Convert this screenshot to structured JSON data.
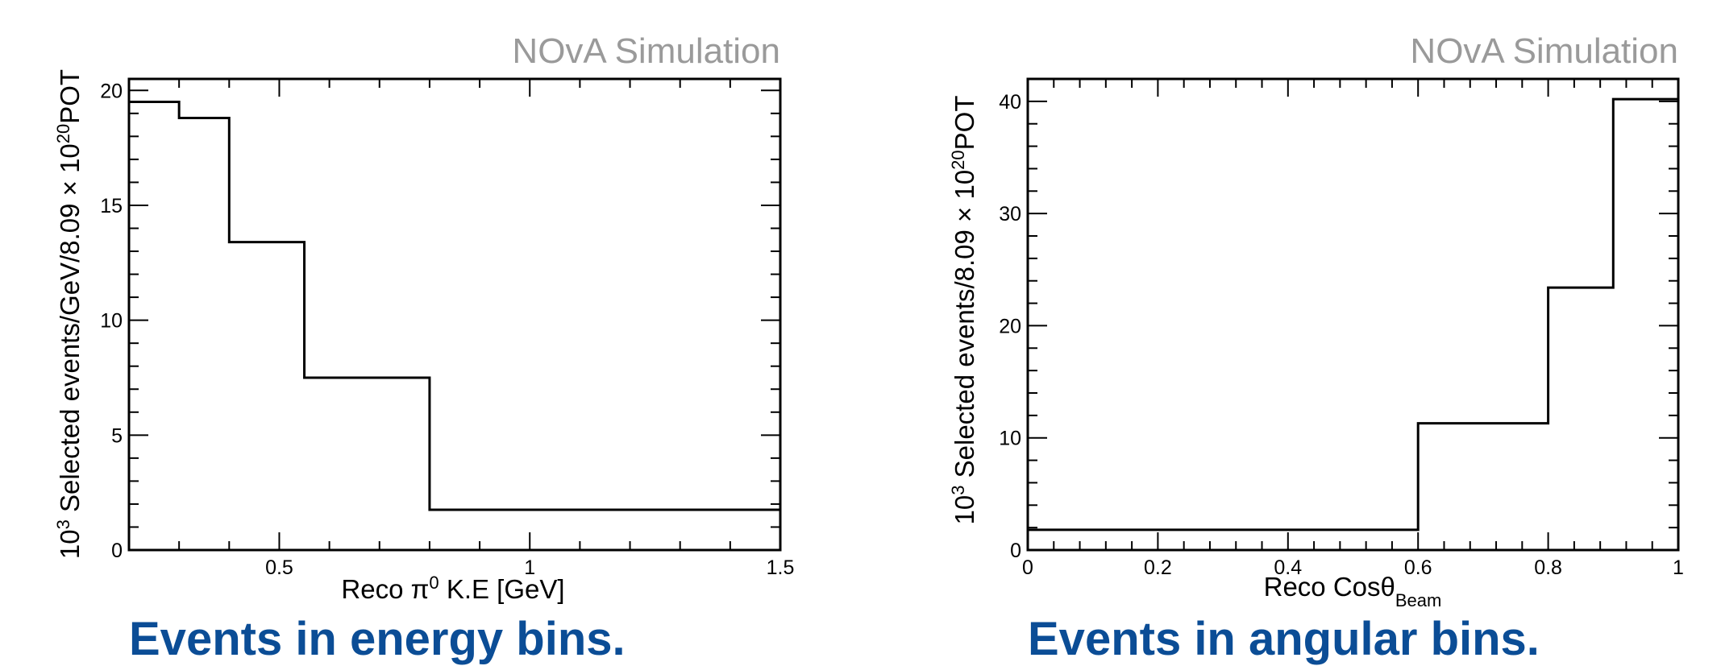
{
  "charts": [
    {
      "watermark": "NOvA Simulation",
      "ylabel_base": "10",
      "ylabel_base_exp": "3",
      "ylabel_main": " Selected events/GeV/8.09 × 10",
      "ylabel_main_exp": "20",
      "ylabel_tail": "POT",
      "xlabel_main": "Reco π",
      "xlabel_sup": "0",
      "xlabel_tail": " K.E [GeV]",
      "caption": "Events in energy bins."
    },
    {
      "watermark": "NOvA Simulation",
      "ylabel_base": "10",
      "ylabel_base_exp": "3",
      "ylabel_main": " Selected events/8.09 × 10",
      "ylabel_main_exp": "20",
      "ylabel_tail": "POT",
      "xlabel_main": "Reco Cosθ",
      "xlabel_sub": "Beam",
      "caption": "Events in angular bins."
    }
  ],
  "chart_data": [
    {
      "type": "histogram",
      "bin_edges": [
        0.2,
        0.3,
        0.4,
        0.55,
        0.8,
        1.5
      ],
      "values": [
        19.5,
        18.8,
        13.4,
        7.5,
        1.75
      ],
      "xlim": [
        0.2,
        1.5
      ],
      "ylim": [
        0,
        20.5
      ],
      "xticks": [
        0.5,
        1,
        1.5
      ],
      "xtick_labels": [
        "0.5",
        "1",
        "1.5"
      ],
      "yticks": [
        0,
        5,
        10,
        15,
        20
      ],
      "ytick_labels": [
        "0",
        "5",
        "10",
        "15",
        "20"
      ],
      "line_color": "#000000"
    },
    {
      "type": "histogram",
      "bin_edges": [
        0,
        0.6,
        0.8,
        0.9,
        1.0
      ],
      "values": [
        1.8,
        11.3,
        23.4,
        40.2
      ],
      "xlim": [
        0,
        1
      ],
      "ylim": [
        0,
        42
      ],
      "xticks": [
        0,
        0.2,
        0.4,
        0.6,
        0.8,
        1
      ],
      "xtick_labels": [
        "0",
        "0.2",
        "0.4",
        "0.6",
        "0.8",
        "1"
      ],
      "yticks": [
        0,
        10,
        20,
        30,
        40
      ],
      "ytick_labels": [
        "0",
        "10",
        "20",
        "30",
        "40"
      ],
      "line_color": "#000000"
    }
  ]
}
